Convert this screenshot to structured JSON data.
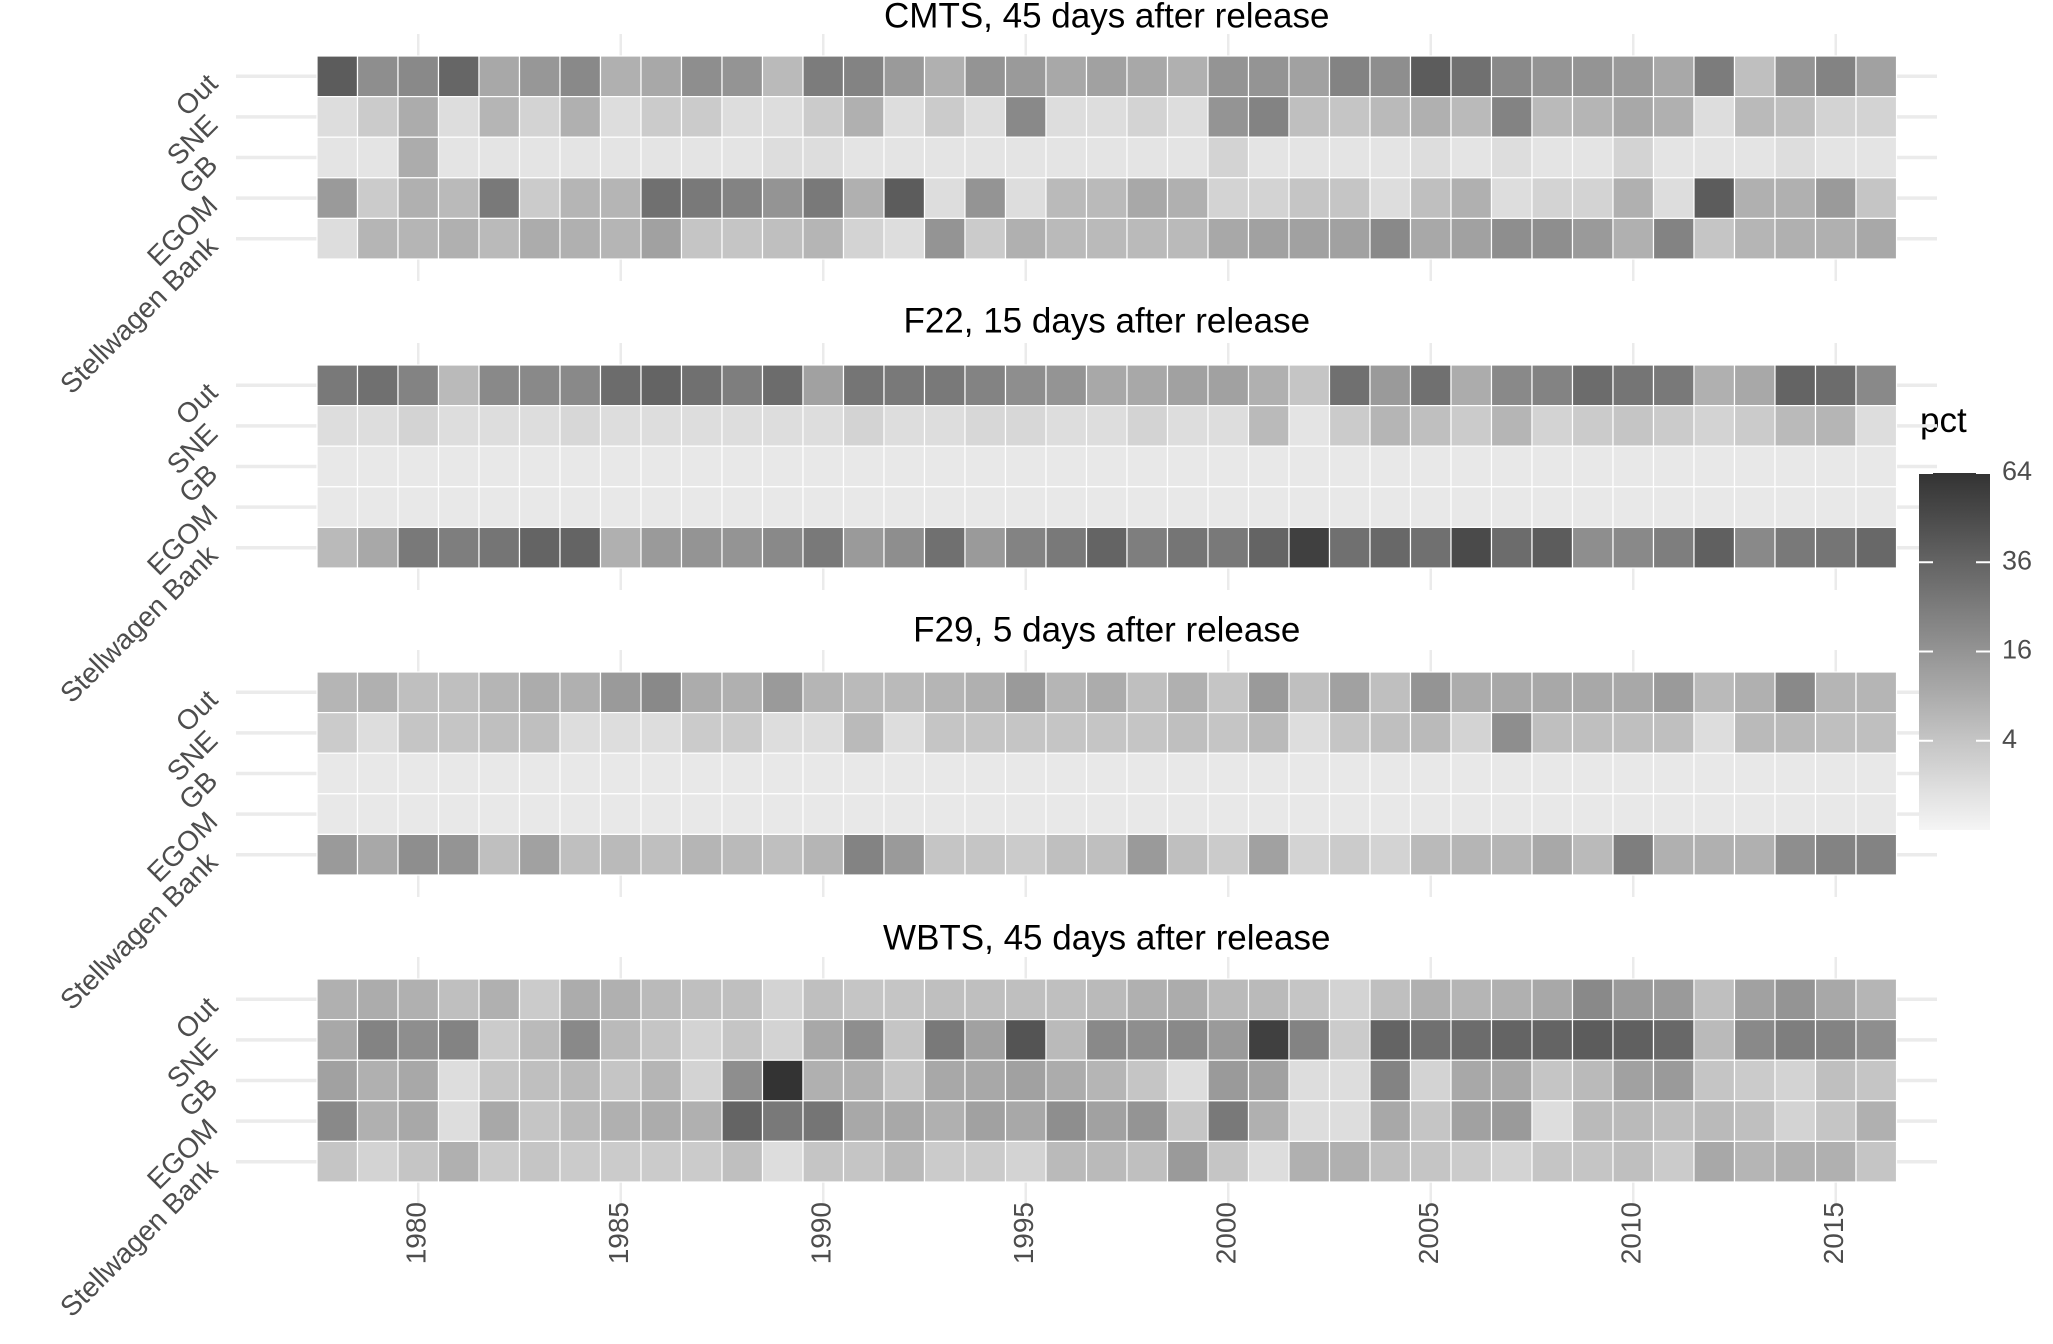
{
  "chart_data": {
    "type": "heatmap",
    "x": [
      1978,
      1979,
      1980,
      1981,
      1982,
      1983,
      1984,
      1985,
      1986,
      1987,
      1988,
      1989,
      1990,
      1991,
      1992,
      1993,
      1994,
      1995,
      1996,
      1997,
      1998,
      1999,
      2000,
      2001,
      2002,
      2003,
      2004,
      2005,
      2006,
      2007,
      2008,
      2009,
      2010,
      2011,
      2012,
      2013,
      2014,
      2015,
      2016
    ],
    "xlim": [
      1975.5,
      2017.5
    ],
    "xticks": [
      1980,
      1985,
      1990,
      1995,
      2000,
      2005,
      2010,
      2015
    ],
    "rows": [
      "Out",
      "SNE",
      "GB",
      "EGOM",
      "Stellwagen Bank"
    ],
    "grid": true,
    "fill_scale": "sqrt",
    "low_color": "#f5f5f5",
    "high_color": "#333333",
    "legend": {
      "title": "pct",
      "lim": [
        0,
        64
      ],
      "ticks": [
        4,
        16,
        36,
        64
      ]
    },
    "panels": [
      {
        "title": "CMTS, 45 days after release",
        "values": [
          [
            40,
            18,
            20,
            35,
            10,
            15,
            20,
            8,
            10,
            18,
            16,
            6,
            25,
            22,
            14,
            8,
            16,
            14,
            10,
            12,
            10,
            8,
            16,
            16,
            12,
            22,
            18,
            40,
            30,
            20,
            16,
            16,
            14,
            10,
            25,
            5,
            16,
            22,
            12
          ],
          [
            1,
            3,
            9,
            1,
            7,
            2,
            8,
            1,
            3,
            3,
            1,
            1,
            3,
            8,
            1,
            3,
            1,
            20,
            1,
            1,
            2,
            1,
            16,
            22,
            5,
            4,
            6,
            8,
            6,
            22,
            6,
            7,
            10,
            8,
            1,
            6,
            5,
            2,
            2
          ],
          [
            0.5,
            0.5,
            9,
            0.5,
            0.5,
            0.5,
            0.5,
            0.5,
            0.5,
            0.5,
            0.5,
            1,
            1,
            0.5,
            0.5,
            0.5,
            0.5,
            0.5,
            0.5,
            0.5,
            0.5,
            0.5,
            2,
            0.5,
            0.5,
            0.5,
            0.5,
            1,
            0.5,
            1,
            0.5,
            0.5,
            2,
            0.5,
            0.5,
            0.5,
            1,
            0.5,
            0.5
          ],
          [
            14,
            3,
            8,
            6,
            26,
            3,
            7,
            7,
            30,
            26,
            22,
            16,
            26,
            8,
            40,
            1,
            16,
            1,
            6,
            6,
            10,
            8,
            2,
            2,
            4,
            4,
            1,
            5,
            8,
            1,
            2,
            2,
            8,
            1,
            40,
            8,
            8,
            14,
            4
          ],
          [
            1,
            7,
            7,
            8,
            6,
            9,
            8,
            7,
            12,
            4,
            4,
            5,
            7,
            2,
            1,
            16,
            3,
            8,
            6,
            6,
            6,
            6,
            10,
            12,
            12,
            12,
            20,
            10,
            12,
            18,
            18,
            14,
            8,
            22,
            4,
            7,
            8,
            8,
            10
          ]
        ]
      },
      {
        "title": "F22, 15 days after release",
        "values": [
          [
            26,
            30,
            22,
            6,
            20,
            20,
            20,
            32,
            36,
            30,
            24,
            32,
            12,
            28,
            26,
            26,
            22,
            18,
            16,
            10,
            10,
            12,
            12,
            8,
            4,
            30,
            14,
            30,
            9,
            20,
            22,
            32,
            28,
            26,
            8,
            10,
            36,
            32,
            20
          ],
          [
            1,
            1,
            2,
            1,
            1,
            1,
            1.5,
            1,
            1,
            1,
            1,
            1,
            1,
            2,
            1,
            1,
            1.5,
            1.5,
            1,
            1,
            2,
            1,
            1,
            6,
            0.5,
            3,
            7,
            5,
            3,
            7,
            2,
            3,
            4,
            3,
            2,
            3,
            6,
            7,
            1
          ],
          [
            0.3,
            0.3,
            0.3,
            0.3,
            0.3,
            0.3,
            0.3,
            0.3,
            0.3,
            0.3,
            0.3,
            0.3,
            0.3,
            0.3,
            0.3,
            0.3,
            0.3,
            0.3,
            0.3,
            0.3,
            0.3,
            0.3,
            0.3,
            0.3,
            0.3,
            0.3,
            0.3,
            0.3,
            0.3,
            0.3,
            0.3,
            0.3,
            0.3,
            0.3,
            0.3,
            0.3,
            0.3,
            0.3,
            0.3
          ],
          [
            0.3,
            0.3,
            0.3,
            0.3,
            0.3,
            0.3,
            0.3,
            0.3,
            0.3,
            0.3,
            0.3,
            0.3,
            0.3,
            0.3,
            0.3,
            0.3,
            0.3,
            0.3,
            0.3,
            0.3,
            0.3,
            0.3,
            0.3,
            0.3,
            0.3,
            0.3,
            0.3,
            0.3,
            0.3,
            0.3,
            0.3,
            0.3,
            0.3,
            0.3,
            0.3,
            0.3,
            0.3,
            0.3,
            0.3
          ],
          [
            6,
            10,
            26,
            24,
            28,
            36,
            36,
            8,
            14,
            16,
            16,
            20,
            26,
            14,
            18,
            30,
            14,
            22,
            26,
            36,
            24,
            28,
            26,
            36,
            56,
            30,
            34,
            30,
            50,
            32,
            40,
            18,
            20,
            24,
            38,
            20,
            26,
            28,
            34
          ]
        ]
      },
      {
        "title": "F29, 5 days after release",
        "values": [
          [
            7,
            8,
            5,
            5,
            7,
            9,
            8,
            14,
            20,
            9,
            8,
            14,
            7,
            6,
            6,
            7,
            8,
            14,
            7,
            9,
            5,
            8,
            4,
            14,
            5,
            12,
            5,
            16,
            9,
            10,
            10,
            10,
            10,
            14,
            6,
            8,
            20,
            7,
            7
          ],
          [
            3,
            1,
            4,
            4,
            5,
            5,
            1,
            1,
            1,
            3,
            3,
            1,
            1,
            6,
            1,
            4,
            4,
            4,
            4,
            4,
            4,
            5,
            4,
            6,
            1,
            4,
            5,
            6,
            2,
            18,
            5,
            5,
            5,
            5,
            1,
            6,
            6,
            5,
            5
          ],
          [
            0.3,
            0.3,
            0.3,
            0.3,
            0.3,
            0.3,
            0.3,
            0.3,
            0.3,
            0.3,
            0.3,
            0.3,
            0.3,
            0.3,
            0.3,
            0.3,
            0.3,
            0.3,
            0.3,
            0.3,
            0.3,
            0.3,
            0.3,
            0.3,
            0.3,
            0.3,
            0.3,
            0.3,
            0.3,
            0.3,
            0.3,
            0.3,
            0.3,
            0.3,
            0.3,
            0.3,
            0.3,
            0.3,
            0.3
          ],
          [
            0.3,
            0.3,
            0.3,
            0.3,
            0.3,
            0.3,
            0.3,
            0.3,
            0.3,
            0.3,
            0.3,
            0.3,
            0.3,
            0.3,
            0.3,
            0.3,
            0.3,
            0.3,
            0.3,
            0.3,
            0.3,
            0.3,
            0.3,
            0.3,
            0.3,
            0.3,
            0.3,
            0.3,
            0.3,
            0.3,
            0.3,
            0.3,
            0.3,
            0.3,
            0.3,
            0.3,
            0.3,
            0.3,
            0.3
          ],
          [
            14,
            10,
            18,
            16,
            5,
            12,
            5,
            6,
            5,
            7,
            6,
            5,
            7,
            22,
            14,
            4,
            4,
            3,
            5,
            5,
            14,
            5,
            3,
            12,
            2,
            3,
            2,
            6,
            7,
            7,
            10,
            6,
            24,
            8,
            8,
            8,
            18,
            22,
            22
          ]
        ]
      },
      {
        "title": "WBTS, 45 days after release",
        "values": [
          [
            8,
            9,
            8,
            5,
            8,
            3,
            9,
            8,
            6,
            5,
            5,
            2,
            5,
            4,
            4,
            5,
            5,
            5,
            5,
            6,
            8,
            9,
            6,
            6,
            4,
            2,
            5,
            8,
            7,
            8,
            10,
            20,
            14,
            14,
            5,
            12,
            16,
            10,
            7
          ],
          [
            10,
            22,
            18,
            22,
            3,
            6,
            20,
            6,
            4,
            2,
            4,
            2,
            10,
            18,
            4,
            26,
            12,
            44,
            6,
            20,
            18,
            20,
            14,
            56,
            22,
            3,
            36,
            30,
            32,
            36,
            36,
            40,
            38,
            34,
            6,
            20,
            24,
            22,
            18
          ],
          [
            12,
            8,
            10,
            1,
            4,
            5,
            6,
            4,
            7,
            2,
            18,
            64,
            8,
            8,
            4,
            10,
            10,
            12,
            9,
            7,
            4,
            1,
            14,
            12,
            1,
            1,
            22,
            2,
            10,
            10,
            4,
            6,
            12,
            14,
            4,
            3,
            2,
            5,
            4
          ],
          [
            20,
            8,
            10,
            1,
            10,
            4,
            6,
            8,
            9,
            8,
            36,
            26,
            28,
            10,
            10,
            8,
            12,
            10,
            18,
            12,
            16,
            4,
            26,
            8,
            1,
            1,
            10,
            4,
            12,
            14,
            1,
            6,
            6,
            5,
            6,
            5,
            2,
            4,
            8
          ],
          [
            4,
            2,
            4,
            8,
            3,
            4,
            3,
            3,
            3,
            3,
            5,
            1,
            4,
            4,
            6,
            3,
            3,
            2,
            6,
            6,
            5,
            14,
            4,
            1,
            8,
            8,
            5,
            4,
            3,
            2,
            4,
            4,
            5,
            3,
            10,
            7,
            8,
            8,
            4
          ]
        ]
      }
    ]
  }
}
